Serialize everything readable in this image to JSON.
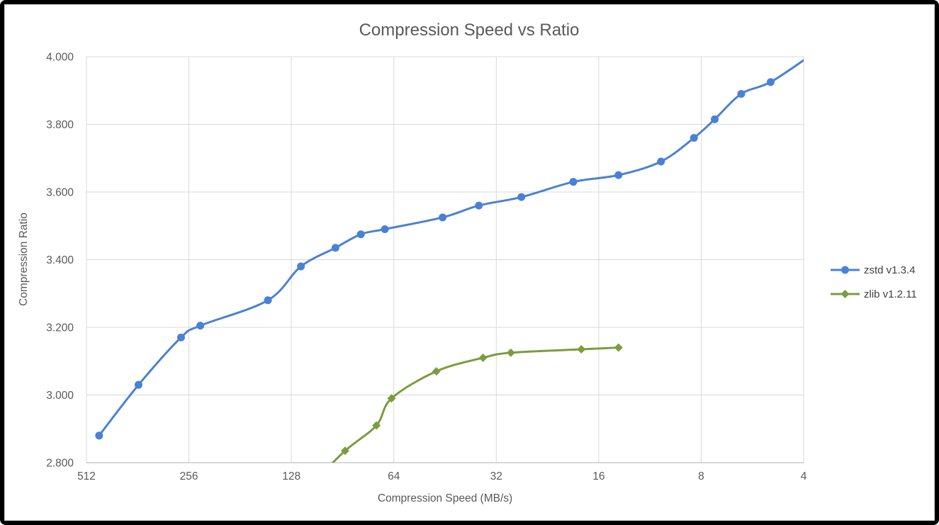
{
  "chart_data": {
    "type": "line",
    "title": "Compression Speed vs Ratio",
    "xlabel": "Compression Speed (MB/s)",
    "ylabel": "Compression Ratio",
    "x_axis": {
      "scale": "log2",
      "reversed": true,
      "range": [
        512,
        4
      ],
      "ticks": [
        512,
        256,
        128,
        64,
        32,
        16,
        8,
        4
      ],
      "tick_labels": [
        "512",
        "256",
        "128",
        "64",
        "32",
        "16",
        "8",
        "4"
      ]
    },
    "y_axis": {
      "scale": "linear",
      "range": [
        2.8,
        4.0
      ],
      "ticks": [
        4.0,
        3.8,
        3.6,
        3.4,
        3.2,
        3.0,
        2.8
      ],
      "tick_labels": [
        "4.000",
        "3.800",
        "3.600",
        "3.400",
        "3.200",
        "3.000",
        "2.800"
      ]
    },
    "grid": true,
    "legend_position": "right",
    "series": [
      {
        "name": "zstd v1.3.4",
        "color": "#4A81D5",
        "marker": "circle",
        "points": [
          [
            470,
            2.88
          ],
          [
            360,
            3.03
          ],
          [
            270,
            3.17
          ],
          [
            237,
            3.205
          ],
          [
            150,
            3.28
          ],
          [
            120,
            3.38
          ],
          [
            95,
            3.435
          ],
          [
            80,
            3.475
          ],
          [
            68,
            3.49
          ],
          [
            46,
            3.525
          ],
          [
            36,
            3.56
          ],
          [
            27,
            3.585
          ],
          [
            19,
            3.63
          ],
          [
            14,
            3.65
          ],
          [
            10.5,
            3.69
          ],
          [
            8.4,
            3.76
          ],
          [
            7.3,
            3.815
          ],
          [
            6.1,
            3.89
          ],
          [
            5.0,
            3.925
          ],
          [
            3.8,
            4.005
          ]
        ]
      },
      {
        "name": "zlib v1.2.11",
        "color": "#7A9D3E",
        "marker": "diamond",
        "points": [
          [
            110,
            2.743
          ],
          [
            89,
            2.835
          ],
          [
            72,
            2.91
          ],
          [
            65,
            2.99
          ],
          [
            48,
            3.07
          ],
          [
            35,
            3.11
          ],
          [
            29,
            3.125
          ],
          [
            18,
            3.135
          ],
          [
            14,
            3.14
          ]
        ]
      }
    ],
    "colors": {
      "grid": "#D9D9D9",
      "plot_border": "#D9D9D9",
      "axis_line": "#BFBFBF",
      "text": "#595959",
      "legend_text": "#404040",
      "background": "#FFFFFF",
      "frame": "#000000"
    }
  }
}
